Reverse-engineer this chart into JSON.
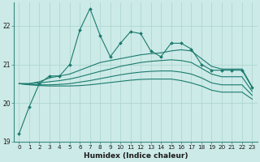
{
  "xlabel": "Humidex (Indice chaleur)",
  "ylabel": "",
  "bg_color": "#cceae7",
  "grid_color": "#aad4d0",
  "line_color": "#1a7a6e",
  "xlim": [
    -0.5,
    23.5
  ],
  "ylim": [
    19.0,
    22.6
  ],
  "yticks": [
    19,
    20,
    21,
    22
  ],
  "xticks": [
    0,
    1,
    2,
    3,
    4,
    5,
    6,
    7,
    8,
    9,
    10,
    11,
    12,
    13,
    14,
    15,
    16,
    17,
    18,
    19,
    20,
    21,
    22,
    23
  ],
  "series": [
    [
      19.2,
      19.9,
      20.5,
      20.7,
      20.7,
      21.0,
      21.9,
      22.45,
      21.75,
      21.2,
      21.55,
      21.85,
      21.8,
      21.35,
      21.2,
      21.55,
      21.55,
      21.4,
      21.0,
      20.85,
      20.85,
      20.85,
      20.85,
      20.4
    ],
    [
      20.5,
      20.5,
      20.55,
      20.65,
      20.7,
      20.75,
      20.85,
      20.95,
      21.05,
      21.1,
      21.15,
      21.2,
      21.25,
      21.28,
      21.3,
      21.35,
      21.38,
      21.35,
      21.15,
      20.95,
      20.88,
      20.88,
      20.88,
      20.42
    ],
    [
      20.5,
      20.5,
      20.52,
      20.55,
      20.58,
      20.62,
      20.68,
      20.75,
      20.82,
      20.88,
      20.95,
      21.0,
      21.05,
      21.08,
      21.1,
      21.12,
      21.1,
      21.05,
      20.9,
      20.75,
      20.68,
      20.68,
      20.68,
      20.3
    ],
    [
      20.5,
      20.48,
      20.47,
      20.47,
      20.48,
      20.5,
      20.54,
      20.58,
      20.63,
      20.68,
      20.73,
      20.77,
      20.8,
      20.82,
      20.83,
      20.83,
      20.8,
      20.75,
      20.65,
      20.52,
      20.47,
      20.47,
      20.47,
      20.2
    ],
    [
      20.5,
      20.47,
      20.45,
      20.44,
      20.44,
      20.44,
      20.45,
      20.47,
      20.5,
      20.53,
      20.56,
      20.59,
      20.61,
      20.62,
      20.62,
      20.62,
      20.58,
      20.52,
      20.44,
      20.33,
      20.28,
      20.28,
      20.28,
      20.1
    ]
  ],
  "has_markers": [
    true,
    false,
    false,
    false,
    false
  ],
  "marker_symbol": "D",
  "marker_size": 2.0,
  "linewidth": 0.8,
  "title_fontsize": 7,
  "xlabel_fontsize": 6.5,
  "tick_fontsize": 5.2
}
